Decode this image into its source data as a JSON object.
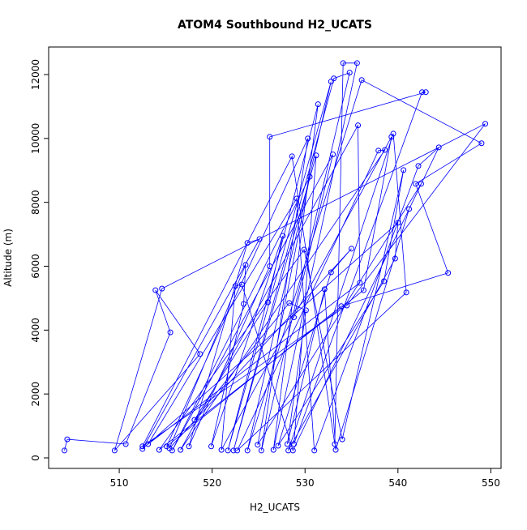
{
  "chart_data": {
    "type": "line",
    "title": "ATOM4 Southbound H2_UCATS",
    "x_label": "H2_UCATS",
    "y_label": "Altitude (m)",
    "x": [
      504.1,
      504.4,
      510.7,
      515.5,
      513.9,
      518.7,
      509.5,
      514.6,
      549.4,
      534.5,
      512.5,
      528.6,
      533.2,
      534.1,
      535.6,
      526.6,
      531.4,
      521.7,
      532.8,
      523.8,
      536.1,
      549.0,
      541.9,
      545.4,
      533.9,
      515.1,
      530.3,
      525.3,
      534.8,
      533.1,
      522.3,
      531.2,
      528.8,
      542.6,
      543.0,
      526.2,
      526.2,
      517.5,
      523.8,
      525.1,
      512.5,
      540.0,
      539.7,
      528.2,
      539.5,
      540.9,
      522.7,
      537.9,
      538.6,
      516.6,
      535.7,
      535.9,
      513.1,
      529.1,
      531.0,
      542.2,
      544.4,
      528.7,
      523.2,
      522.5,
      521.0,
      539.3,
      536.3,
      514.3,
      529.9,
      534.0,
      540.6,
      538.5,
      527.1,
      532.8,
      535.0,
      515.4,
      523.6,
      523.4,
      519.9,
      527.6,
      526.0,
      518.1,
      528.3,
      530.1,
      528.1,
      532.1,
      533.3,
      541.2,
      542.5,
      524.9,
      530.5,
      515.7,
      533.0,
      528.8
    ],
    "values": [
      230,
      580,
      430,
      3930,
      5250,
      3250,
      230,
      5300,
      10460,
      4770,
      360,
      9440,
      430,
      12360,
      12360,
      250,
      11070,
      230,
      11780,
      230,
      11830,
      9850,
      8580,
      5790,
      4750,
      360,
      10000,
      230,
      12060,
      11880,
      230,
      9470,
      430,
      11450,
      11450,
      10050,
      6000,
      360,
      6730,
      6850,
      280,
      7360,
      6240,
      230,
      10150,
      5180,
      230,
      9620,
      9640,
      250,
      10410,
      5480,
      430,
      8120,
      230,
      9140,
      9720,
      230,
      5430,
      5380,
      250,
      10050,
      5250,
      250,
      6520,
      580,
      9010,
      5530,
      380,
      5810,
      6550,
      300,
      6040,
      4820,
      360,
      6950,
      4870,
      1190,
      4850,
      4620,
      430,
      5280,
      250,
      7790,
      8580,
      410,
      8800,
      230,
      9500,
      4400
    ],
    "color": "#0000ff",
    "xlim": [
      502.4,
      551.1
    ],
    "xticks": [
      510,
      520,
      530,
      540,
      550
    ],
    "ylim": [
      -330,
      12863
    ],
    "yticks": [
      0,
      2000,
      4000,
      6000,
      8000,
      10000,
      12000
    ]
  }
}
